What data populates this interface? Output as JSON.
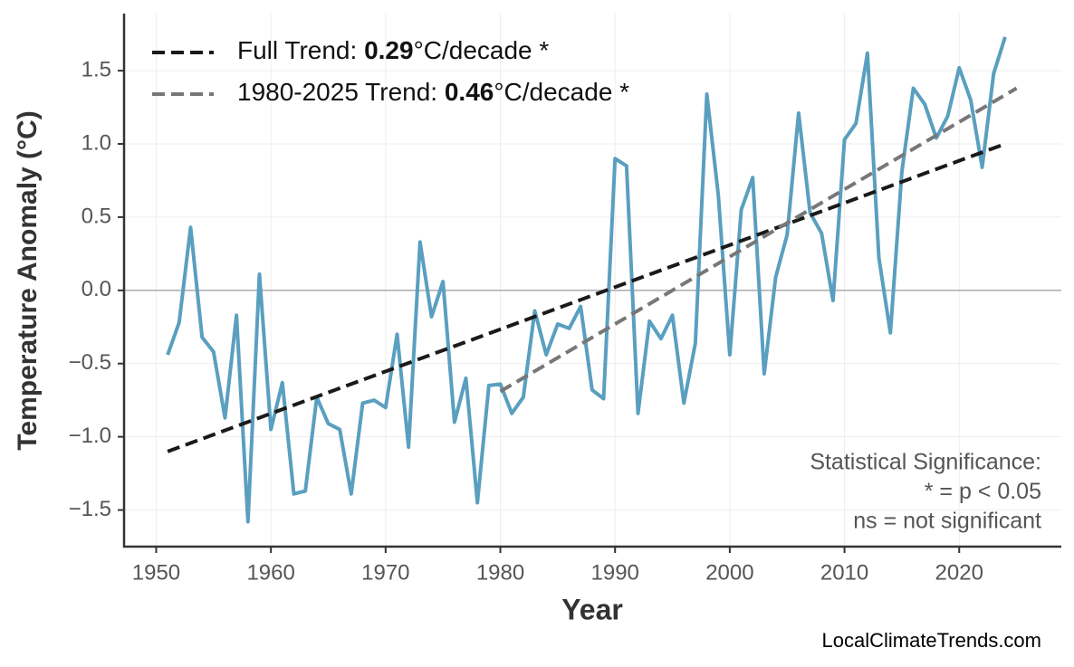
{
  "chart_data": {
    "type": "line",
    "x_label": "Year",
    "y_label": "Temperature Anomaly (°C)",
    "x": [
      1951,
      1952,
      1953,
      1954,
      1955,
      1956,
      1957,
      1958,
      1959,
      1960,
      1961,
      1962,
      1963,
      1964,
      1965,
      1966,
      1967,
      1968,
      1969,
      1970,
      1971,
      1972,
      1973,
      1974,
      1975,
      1976,
      1977,
      1978,
      1979,
      1980,
      1981,
      1982,
      1983,
      1984,
      1985,
      1986,
      1987,
      1988,
      1989,
      1990,
      1991,
      1992,
      1993,
      1994,
      1995,
      1996,
      1997,
      1998,
      1999,
      2000,
      2001,
      2002,
      2003,
      2004,
      2005,
      2006,
      2007,
      2008,
      2009,
      2010,
      2011,
      2012,
      2013,
      2014,
      2015,
      2016,
      2017,
      2018,
      2019,
      2020,
      2021,
      2022,
      2023,
      2024
    ],
    "series": [
      {
        "color": "#5a9fbf",
        "linestyle": "solid",
        "values": [
          -0.44,
          -0.22,
          0.43,
          -0.32,
          -0.42,
          -0.87,
          -0.17,
          -1.58,
          0.11,
          -0.95,
          -0.63,
          -1.39,
          -1.37,
          -0.73,
          -0.91,
          -0.95,
          -1.39,
          -0.77,
          -0.75,
          -0.8,
          -0.3,
          -1.07,
          0.33,
          -0.18,
          0.06,
          -0.9,
          -0.6,
          -1.45,
          -0.65,
          -0.64,
          -0.84,
          -0.73,
          -0.14,
          -0.44,
          -0.23,
          -0.26,
          -0.11,
          -0.68,
          -0.74,
          0.9,
          0.85,
          -0.84,
          -0.21,
          -0.33,
          -0.17,
          -0.77,
          -0.36,
          1.34,
          0.65,
          -0.44,
          0.55,
          0.77,
          -0.57,
          0.09,
          0.38,
          1.21,
          0.53,
          0.39,
          -0.07,
          1.03,
          1.14,
          1.62,
          0.22,
          -0.29,
          0.81,
          1.38,
          1.27,
          1.04,
          1.19,
          1.52,
          1.3,
          0.84,
          1.48,
          1.73
        ]
      },
      {
        "name": [
          "Full Trend: ",
          "0.29",
          "°C/decade *"
        ],
        "color": "#1a1a1a",
        "linestyle": "dashed",
        "x": [
          1951,
          2024
        ],
        "values": [
          -1.1,
          1.0
        ]
      },
      {
        "name": [
          "1980-2025 Trend: ",
          "0.46",
          "°C/decade *"
        ],
        "color": "#777777",
        "linestyle": "dashed",
        "x": [
          1980,
          2025
        ],
        "values": [
          -0.69,
          1.38
        ]
      }
    ],
    "xlim": [
      1947.2,
      2028.9
    ],
    "ylim": [
      -1.75,
      1.89
    ],
    "xticks": [
      1950,
      1960,
      1970,
      1980,
      1990,
      2000,
      2010,
      2020
    ],
    "yticks": [
      {
        "value": -1.5,
        "label": "−1.5"
      },
      {
        "value": -1,
        "label": "−1.0"
      },
      {
        "value": -0.5,
        "label": "−0.5"
      },
      {
        "value": 0,
        "label": "0.0"
      },
      0.5,
      {
        "value": 1,
        "label": "1.0"
      },
      1.5
    ],
    "hline": 0,
    "grid": true,
    "legend": "upper left",
    "annotation": [
      "Statistical Significance:",
      "* = p < 0.05",
      "ns = not significant"
    ],
    "source": "LocalClimateTrends.com"
  }
}
